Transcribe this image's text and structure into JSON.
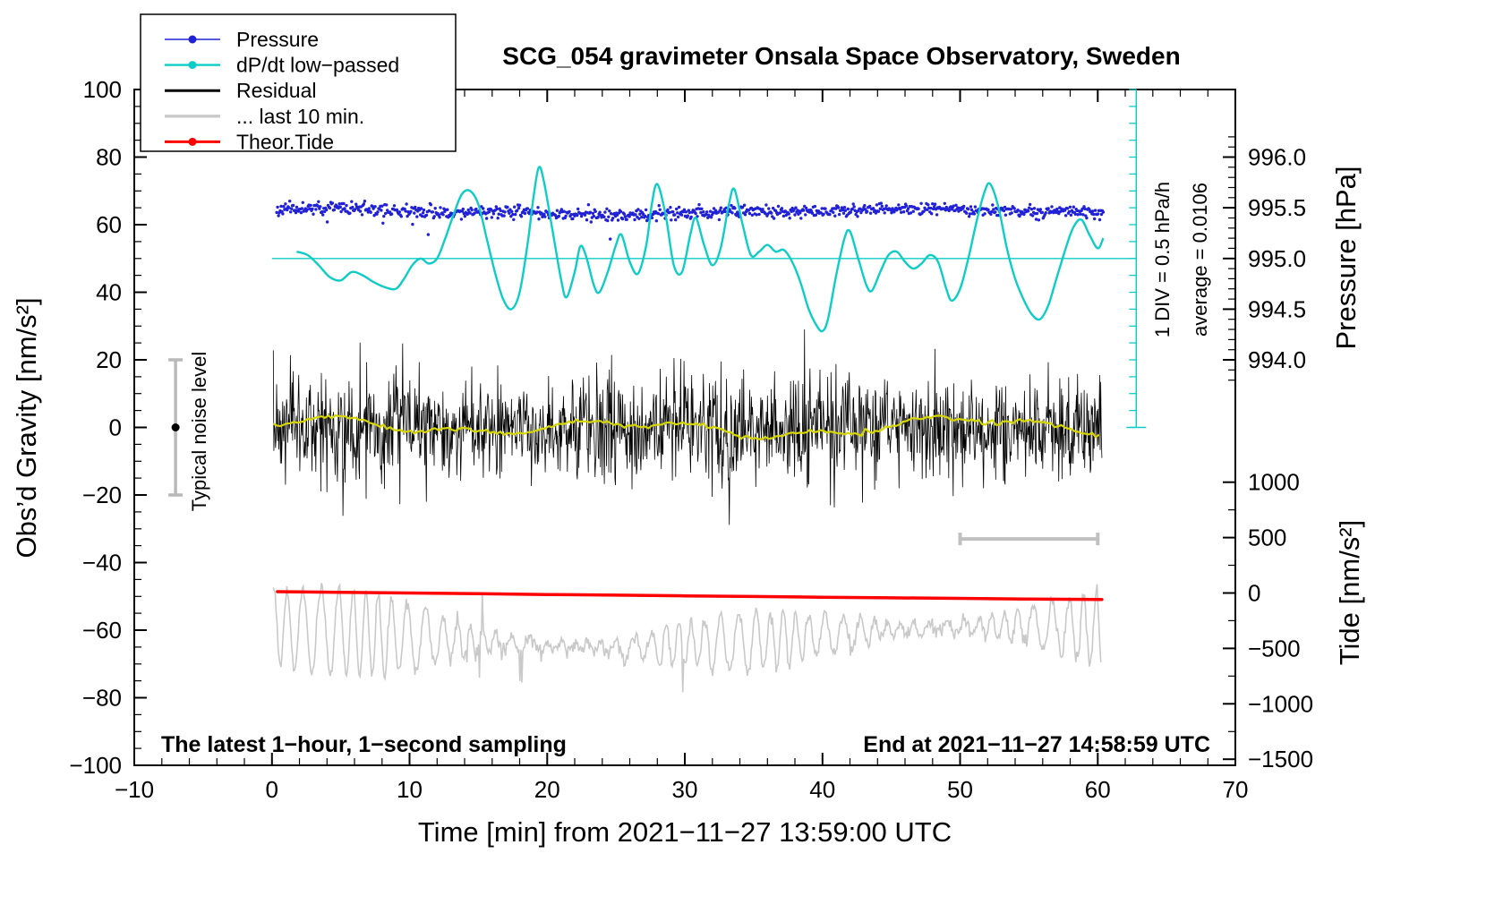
{
  "chart_data": {
    "type": "line",
    "title": "SCG_054 gravimeter Onsala Space Observatory, Sweden",
    "x_axis": {
      "label": "Time [min] from 2021−11−27 13:59:00 UTC",
      "min": -10,
      "max": 70,
      "minor_step": 2,
      "major_ticks": [
        {
          "v": -10,
          "label": "−10"
        },
        {
          "v": 0,
          "label": "0"
        },
        {
          "v": 10,
          "label": "10"
        },
        {
          "v": 20,
          "label": "20"
        },
        {
          "v": 30,
          "label": "30"
        },
        {
          "v": 40,
          "label": "40"
        },
        {
          "v": 50,
          "label": "50"
        },
        {
          "v": 60,
          "label": "60"
        },
        {
          "v": 70,
          "label": "70"
        }
      ]
    },
    "y_axis_left": {
      "label": "Obs’d Gravity [nm/s²]",
      "min": -100,
      "max": 100,
      "minor_step": 5,
      "major_ticks": [
        {
          "v": 100,
          "label": "100"
        },
        {
          "v": 80,
          "label": "80"
        },
        {
          "v": 60,
          "label": "60"
        },
        {
          "v": 40,
          "label": "40"
        },
        {
          "v": 20,
          "label": "20"
        },
        {
          "v": 0,
          "label": "0"
        },
        {
          "v": -20,
          "label": "−20"
        },
        {
          "v": -40,
          "label": "−40"
        },
        {
          "v": -60,
          "label": "−60"
        },
        {
          "v": -80,
          "label": "−80"
        },
        {
          "v": -100,
          "label": "−100"
        }
      ]
    },
    "y_axis_right_pressure": {
      "label": "Pressure [hPa]",
      "gravity_at_995": 50,
      "gravity_per_hPa": 30,
      "minor_step_hPa": 0.1,
      "minor_range_hPa": [
        993.8,
        996.2
      ],
      "ticks": [
        {
          "value": 996.0,
          "label": "996.0",
          "gravity": 80
        },
        {
          "value": 995.5,
          "label": "995.5",
          "gravity": 65
        },
        {
          "value": 995.0,
          "label": "995.0",
          "gravity": 50
        },
        {
          "value": 994.5,
          "label": "994.5",
          "gravity": 35
        },
        {
          "value": 994.0,
          "label": "994.0",
          "gravity": 20
        }
      ]
    },
    "y_axis_right_tide": {
      "label": "Tide [nm/s²]",
      "gravity_zero": -49,
      "gravity_per_unit": 0.0328,
      "minor_step": 250,
      "minor_range": [
        -1500,
        1000
      ],
      "ticks": [
        {
          "value": 1000,
          "label": "1000",
          "gravity": -16.2
        },
        {
          "value": 500,
          "label": "500",
          "gravity": -32.6
        },
        {
          "value": 0,
          "label": "0",
          "gravity": -49.0
        },
        {
          "value": -500,
          "label": "−500",
          "gravity": -65.4
        },
        {
          "value": -1000,
          "label": "−1000",
          "gravity": -81.8
        },
        {
          "value": -1500,
          "label": "−1500",
          "gravity": -98.2
        }
      ]
    },
    "annotations": {
      "sampling_note": "The latest 1−hour, 1−second sampling",
      "end_note": "End at 2021−11−27 14:58:59 UTC",
      "noise_level": "Typical noise level",
      "div_scale": "1 DIV = 0.5 hPa/h",
      "average": "average = 0.0106"
    },
    "legend": {
      "position": "top-left",
      "items": [
        {
          "label": "Pressure",
          "color": "#2121d6",
          "dot": true,
          "line_width": 1.6
        },
        {
          "label": "dP/dt low−passed",
          "color": "#0fcdc6",
          "dot": true,
          "line_width": 2.4
        },
        {
          "label": "Residual",
          "color": "#000000",
          "dot": false,
          "line_width": 3
        },
        {
          "label": "... last 10 min.",
          "color": "#c9c9c9",
          "dot": false,
          "line_width": 3.4
        },
        {
          "label": "Theor.Tide",
          "color": "#ff0000",
          "dot": true,
          "line_width": 3
        }
      ]
    },
    "markers": {
      "zero_line": {
        "gravity": 50,
        "x_start": 0,
        "x_end": 62.8,
        "color": "#0fcdc6"
      },
      "dpdt_ruler": {
        "x": 62.8,
        "gravity_from": 0,
        "gravity_to": 100,
        "tick_step": 5,
        "color": "#0fcdc6"
      },
      "noise_bar": {
        "x": -7,
        "gravity_center": 0,
        "gravity_half_range": 20,
        "color": "#b9b9b9"
      },
      "ten_min_bar": {
        "x_start": 50,
        "x_end": 60,
        "gravity": -33,
        "color": "#c0c0c0"
      }
    },
    "series": [
      {
        "id": "pressure",
        "name": "Pressure",
        "color": "#2121d6",
        "style": "dots",
        "mean_pressure_hPa": 995.46,
        "mean_gravity": 63.8,
        "sd_gravity": 0.9,
        "x_start": 0.35,
        "x_end": 60.4,
        "n_points": 950,
        "seed": 11
      },
      {
        "id": "dpdt",
        "name": "dP/dt low−passed",
        "color": "#0fcdc6",
        "style": "smooth",
        "zero_gravity": 50,
        "div_hPa_per_h": 0.5,
        "average_hPa_per_h": 0.0106,
        "points": [
          [
            1.8,
            52
          ],
          [
            2.6,
            51
          ],
          [
            3.4,
            48
          ],
          [
            4.2,
            44.5
          ],
          [
            5.0,
            43.5
          ],
          [
            5.8,
            46
          ],
          [
            6.6,
            45
          ],
          [
            7.4,
            43
          ],
          [
            8.2,
            41.5
          ],
          [
            9.0,
            41
          ],
          [
            9.6,
            44
          ],
          [
            10.2,
            48
          ],
          [
            10.8,
            50
          ],
          [
            11.4,
            48.5
          ],
          [
            12.0,
            50
          ],
          [
            12.6,
            56
          ],
          [
            13.2,
            63
          ],
          [
            13.8,
            69
          ],
          [
            14.4,
            70
          ],
          [
            15.0,
            66
          ],
          [
            15.6,
            56
          ],
          [
            16.2,
            46
          ],
          [
            16.8,
            38
          ],
          [
            17.4,
            35
          ],
          [
            18.0,
            40
          ],
          [
            18.6,
            55
          ],
          [
            19.0,
            68
          ],
          [
            19.4,
            77
          ],
          [
            19.8,
            72
          ],
          [
            20.4,
            58
          ],
          [
            21.0,
            44
          ],
          [
            21.4,
            38.5
          ],
          [
            22.0,
            46
          ],
          [
            22.4,
            53.5
          ],
          [
            22.8,
            51
          ],
          [
            23.4,
            42
          ],
          [
            23.8,
            40
          ],
          [
            24.4,
            46
          ],
          [
            25.0,
            54
          ],
          [
            25.4,
            57
          ],
          [
            26.0,
            49
          ],
          [
            26.6,
            45.5
          ],
          [
            27.2,
            54
          ],
          [
            27.6,
            66
          ],
          [
            28.0,
            72
          ],
          [
            28.6,
            63
          ],
          [
            29.2,
            48
          ],
          [
            29.8,
            46
          ],
          [
            30.4,
            57
          ],
          [
            30.8,
            62
          ],
          [
            31.4,
            54
          ],
          [
            32.0,
            48
          ],
          [
            32.6,
            53
          ],
          [
            33.2,
            66
          ],
          [
            33.6,
            70.5
          ],
          [
            34.2,
            60
          ],
          [
            34.8,
            51
          ],
          [
            35.4,
            52
          ],
          [
            36.0,
            54
          ],
          [
            36.6,
            52
          ],
          [
            37.2,
            52.5
          ],
          [
            37.8,
            49
          ],
          [
            38.4,
            43
          ],
          [
            39.0,
            35
          ],
          [
            39.6,
            30
          ],
          [
            40.0,
            28.5
          ],
          [
            40.4,
            32
          ],
          [
            41.0,
            45
          ],
          [
            41.6,
            56
          ],
          [
            42.0,
            58
          ],
          [
            42.6,
            50
          ],
          [
            43.2,
            42
          ],
          [
            43.6,
            40.5
          ],
          [
            44.2,
            46
          ],
          [
            44.8,
            51
          ],
          [
            45.4,
            52
          ],
          [
            46.0,
            49
          ],
          [
            46.6,
            47
          ],
          [
            47.2,
            48.5
          ],
          [
            47.8,
            51
          ],
          [
            48.4,
            49
          ],
          [
            49.0,
            41
          ],
          [
            49.4,
            37.5
          ],
          [
            50.0,
            41
          ],
          [
            50.6,
            50
          ],
          [
            51.2,
            61
          ],
          [
            51.8,
            70
          ],
          [
            52.2,
            72
          ],
          [
            52.8,
            65
          ],
          [
            53.4,
            53
          ],
          [
            54.0,
            44
          ],
          [
            54.6,
            38
          ],
          [
            55.2,
            33.5
          ],
          [
            55.8,
            32
          ],
          [
            56.4,
            36
          ],
          [
            57.0,
            44
          ],
          [
            57.6,
            52
          ],
          [
            58.2,
            59
          ],
          [
            58.8,
            61.5
          ],
          [
            59.4,
            57
          ],
          [
            60.0,
            53
          ],
          [
            60.4,
            56
          ]
        ]
      },
      {
        "id": "residual",
        "name": "Residual",
        "color": "#000000",
        "style": "noise",
        "mean_gravity": 0,
        "sd_gravity": 7.5,
        "max_abs": 29,
        "x_start": 0.1,
        "x_end": 60.3,
        "n_points": 1500,
        "seed": 7
      },
      {
        "id": "residual_smooth",
        "name": "Residual smoothed",
        "color": "#d6d600",
        "style": "wavelet",
        "mean_gravity": 0,
        "x_start": 0.1,
        "x_end": 60.3,
        "step": 0.25,
        "seed": 5
      },
      {
        "id": "last10",
        "name": "... last 10 min.",
        "color": "#c9c9c9",
        "style": "oscillation",
        "mean_gravity": -62.5,
        "min_gravity": -86,
        "max_gravity": -37,
        "x_start": 0.1,
        "x_end": 60.3,
        "step": 0.07,
        "seed": 9
      },
      {
        "id": "tide",
        "name": "Theor.Tide",
        "color": "#ff0000",
        "style": "polyline",
        "points": [
          [
            0.4,
            -48.6
          ],
          [
            5,
            -48.8
          ],
          [
            10,
            -49.0
          ],
          [
            15,
            -49.2
          ],
          [
            20,
            -49.45
          ],
          [
            25,
            -49.65
          ],
          [
            30,
            -49.85
          ],
          [
            35,
            -50.05
          ],
          [
            40,
            -50.25
          ],
          [
            45,
            -50.45
          ],
          [
            50,
            -50.6
          ],
          [
            55,
            -50.8
          ],
          [
            60.3,
            -50.95
          ]
        ]
      }
    ]
  }
}
